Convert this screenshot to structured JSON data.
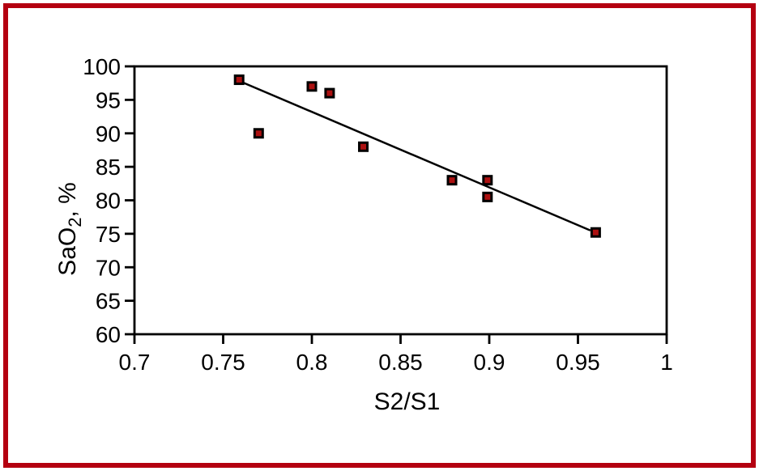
{
  "figure": {
    "description": "Scatter plot of arterial oxygen saturation versus S2/S1 ratio with linear trend line, framed by a dark red border"
  },
  "colors": {
    "frame": "#b40010",
    "background": "#ffffff",
    "axis": "#000000",
    "trend_line": "#000000",
    "marker_fill": "#ac1111",
    "marker_border": "#000000"
  },
  "chart_data": {
    "type": "scatter",
    "title": "",
    "xlabel": "S2/S1",
    "ylabel": "SaO2, %",
    "ylabel_parts": {
      "pre": "SaO",
      "sub": "2",
      "post": ", %"
    },
    "xlim": [
      0.7,
      1.0
    ],
    "ylim": [
      60,
      100
    ],
    "x_ticks": [
      0.7,
      0.75,
      0.8,
      0.85,
      0.9,
      0.95,
      1.0
    ],
    "x_tick_labels": [
      "0.7",
      "0.75",
      "0.8",
      "0.85",
      "0.9",
      "0.95",
      "1"
    ],
    "y_ticks": [
      60,
      65,
      70,
      75,
      80,
      85,
      90,
      95,
      100
    ],
    "y_tick_labels": [
      "60",
      "65",
      "70",
      "75",
      "80",
      "85",
      "90",
      "95",
      "100"
    ],
    "grid": false,
    "legend": null,
    "marker_shape": "square",
    "points": [
      {
        "x": 0.759,
        "y": 98
      },
      {
        "x": 0.77,
        "y": 90
      },
      {
        "x": 0.8,
        "y": 97
      },
      {
        "x": 0.81,
        "y": 96
      },
      {
        "x": 0.829,
        "y": 88
      },
      {
        "x": 0.879,
        "y": 83
      },
      {
        "x": 0.899,
        "y": 83
      },
      {
        "x": 0.899,
        "y": 80.5
      },
      {
        "x": 0.96,
        "y": 75.2
      }
    ],
    "trend_line": {
      "x1": 0.761,
      "y1": 97.6,
      "x2": 0.957,
      "y2": 75.5
    }
  }
}
